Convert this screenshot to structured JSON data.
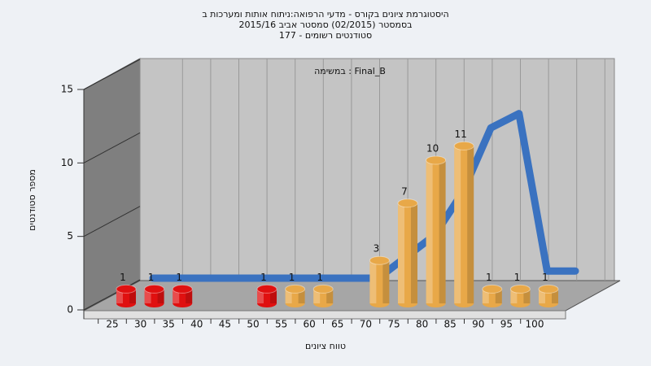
{
  "chart_data": {
    "type": "bar",
    "title": [
      "היסטוגרמת ציונים בקורס - מדעי הרפואה:ניתוח אותות ומערכות ב",
      "בסמסטר  (02/2015)  סמסטר אביב 2015/16",
      "סטודנטים רשומים - 177"
    ],
    "subtitle": "במשימה : Final_B",
    "x_label": "טווח ציונים",
    "y_label": "מספר סטודנטים",
    "categories": [
      25,
      30,
      35,
      40,
      45,
      50,
      55,
      60,
      65,
      70,
      75,
      80,
      85,
      90,
      95,
      100
    ],
    "values": [
      1,
      1,
      1,
      0,
      0,
      1,
      1,
      1,
      0,
      3,
      7,
      10,
      11,
      1,
      1,
      1
    ],
    "colors": [
      "#e01010",
      "#e01010",
      "#e01010",
      "#e01010",
      "#e01010",
      "#e01010",
      "#e8a848",
      "#e8a848",
      "#e8a848",
      "#e8a848",
      "#e8a848",
      "#e8a848",
      "#e8a848",
      "#e8a848",
      "#e8a848",
      "#e8a848"
    ],
    "curve": {
      "color": "#3a72c0",
      "values": [
        0,
        0,
        0,
        0,
        0,
        0,
        0,
        0,
        0,
        1.5,
        3,
        6,
        10.5,
        11.5,
        0.5,
        0.5
      ]
    },
    "ylim": [
      0,
      15
    ],
    "yticks": [
      0,
      5,
      10,
      15
    ],
    "grid": true
  }
}
